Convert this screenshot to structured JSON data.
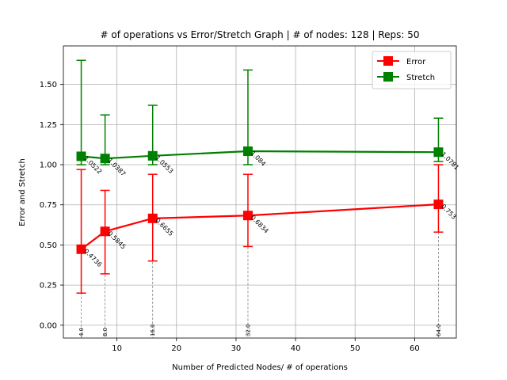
{
  "chart_data": {
    "type": "line",
    "title": "# of operations vs Error/Stretch Graph | # of nodes: 128 | Reps: 50",
    "xlabel": "Number of Predicted Nodes/ # of operations",
    "ylabel": "Error and Stretch",
    "xlim": [
      1.0,
      67.0
    ],
    "ylim": [
      -0.08,
      1.74
    ],
    "x_ticks": [
      10,
      20,
      30,
      40,
      50,
      60
    ],
    "y_ticks": [
      0.0,
      0.25,
      0.5,
      0.75,
      1.0,
      1.25,
      1.5
    ],
    "grid": true,
    "legend_position": "top-right",
    "x": [
      4,
      8,
      16,
      32,
      64
    ],
    "x_point_labels": [
      "4.0",
      "8.0",
      "16.0",
      "32.0",
      "64.0"
    ],
    "series": [
      {
        "name": "Error",
        "color": "#ff0000",
        "values": [
          0.4736,
          0.5845,
          0.6655,
          0.6834,
          0.753
        ],
        "value_labels": [
          "0.4736",
          "0.5845",
          "0.6655",
          "0.6834",
          "0.753"
        ],
        "error_low": [
          0.2,
          0.32,
          0.4,
          0.49,
          0.58
        ],
        "error_high": [
          0.97,
          0.84,
          0.94,
          0.94,
          1.0
        ]
      },
      {
        "name": "Stretch",
        "color": "#008000",
        "values": [
          1.0522,
          1.0387,
          1.0553,
          1.084,
          1.0781
        ],
        "value_labels": [
          "1.0522",
          "1.0387",
          "1.0553",
          "1.084",
          "1.0781"
        ],
        "error_low": [
          1.0,
          1.0,
          1.0,
          1.0,
          1.02
        ],
        "error_high": [
          1.65,
          1.31,
          1.37,
          1.59,
          1.29
        ]
      }
    ]
  }
}
